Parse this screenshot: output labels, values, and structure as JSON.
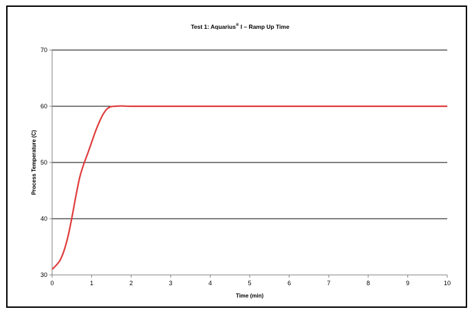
{
  "chart_data": {
    "type": "line",
    "title_main": "Test 1: Aquarius",
    "title_sup": "®",
    "title_rest": " I – Ramp Up Time",
    "xlabel": "Time (min)",
    "ylabel": "Process Temperature (C)",
    "xlim": [
      0,
      10
    ],
    "ylim": [
      30,
      70
    ],
    "x_ticks": [
      "0",
      "1",
      "2",
      "3",
      "4",
      "5",
      "6",
      "7",
      "8",
      "9",
      "10"
    ],
    "y_ticks": [
      "30",
      "40",
      "50",
      "60",
      "70"
    ],
    "grid": "horizontal",
    "legend": "none",
    "colors": {
      "line": "#e03c3c",
      "grid": "#000000",
      "axis": "#808080"
    },
    "series": [
      {
        "x": [
          0,
          0.1,
          0.2,
          0.3,
          0.4,
          0.5,
          0.6,
          0.7,
          0.8,
          0.9,
          1.0,
          1.1,
          1.2,
          1.3,
          1.4,
          1.5,
          1.6,
          1.7,
          1.8,
          2.0,
          3.0,
          4.0,
          5.0,
          6.0,
          7.0,
          8.0,
          9.0,
          10.0
        ],
        "y": [
          31,
          31.7,
          32.6,
          34.3,
          36.8,
          40.2,
          44.0,
          47.4,
          49.7,
          51.6,
          53.6,
          55.6,
          57.3,
          58.7,
          59.6,
          59.95,
          60.0,
          60.05,
          60.05,
          60.0,
          60.0,
          60.0,
          60.0,
          60.0,
          60.0,
          60.0,
          60.0,
          60.0
        ]
      }
    ]
  }
}
